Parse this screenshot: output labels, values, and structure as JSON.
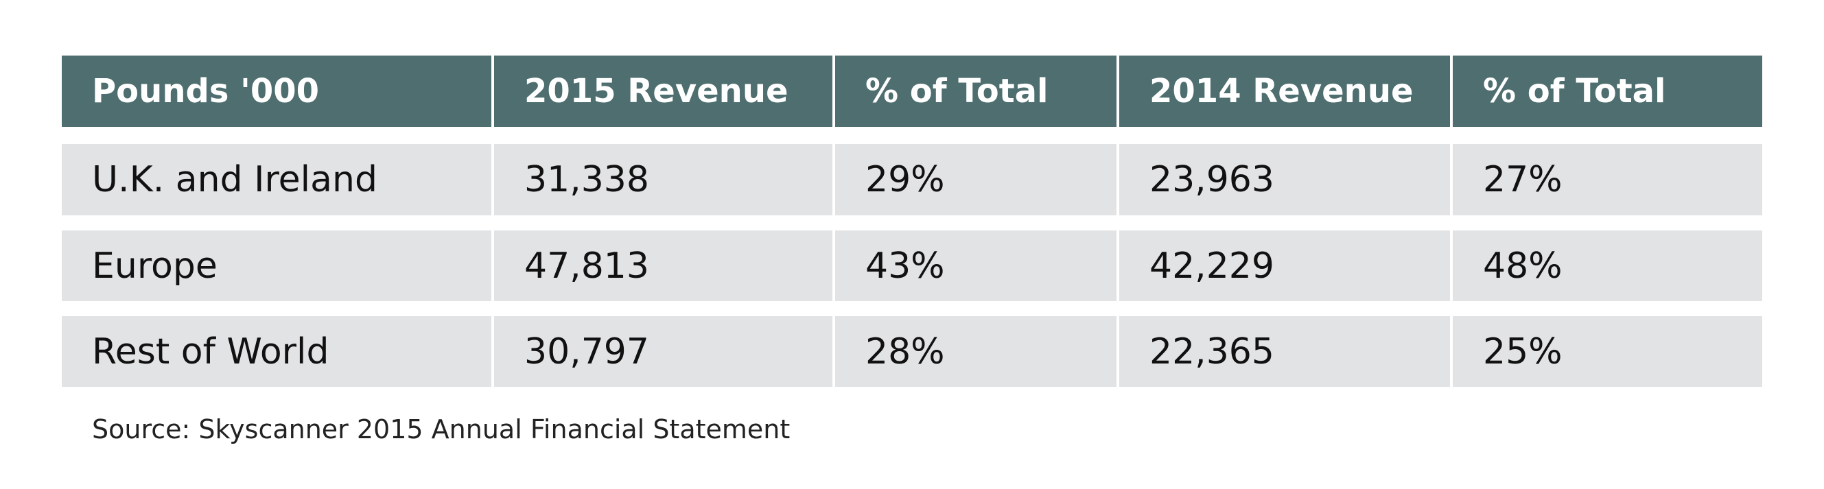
{
  "table": {
    "header": [
      "Pounds '000",
      "2015 Revenue",
      "% of Total",
      "2014 Revenue",
      "% of Total"
    ],
    "rows": [
      [
        "U.K. and Ireland",
        "31,338",
        "29%",
        "23,963",
        "27%"
      ],
      [
        "Europe",
        "47,813",
        "43%",
        "42,229",
        "48%"
      ],
      [
        "Rest of World",
        "30,797",
        "28%",
        "22,365",
        "25%"
      ]
    ]
  },
  "source": "Source: Skyscanner 2015 Annual Financial Statement"
}
